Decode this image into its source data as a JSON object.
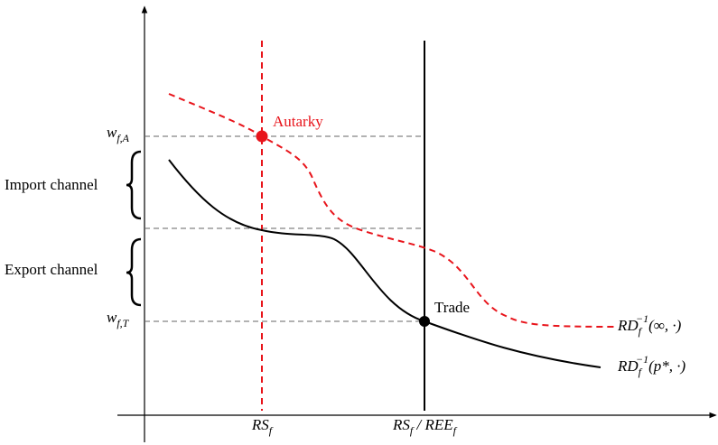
{
  "y_labels": [
    [
      {
        "text": "w"
      },
      {
        "text": "f,A",
        "pos": "sub"
      }
    ],
    [
      {
        "text": "w"
      },
      {
        "text": "f,T",
        "pos": "sub"
      }
    ]
  ],
  "channels": [
    "Import channel",
    "Export channel"
  ],
  "points": [
    "Autarky",
    "Trade"
  ],
  "x_labels": [
    [
      {
        "text": "RS"
      },
      {
        "text": "f",
        "pos": "sub"
      }
    ],
    [
      {
        "text": "RS"
      },
      {
        "text": "f",
        "pos": "sub"
      },
      {
        "text": " / REE"
      },
      {
        "text": "f",
        "pos": "sub"
      }
    ]
  ],
  "curve_labels": [
    [
      {
        "text": "RD"
      },
      {
        "text": "f",
        "pos": "sub"
      },
      {
        "text": "−1",
        "pos": "sup"
      },
      {
        "text": "(∞, ·)"
      }
    ],
    [
      {
        "text": "RD"
      },
      {
        "text": "f",
        "pos": "sub"
      },
      {
        "text": "−1",
        "pos": "sup"
      },
      {
        "text": "(p*, ·)"
      }
    ]
  ]
}
